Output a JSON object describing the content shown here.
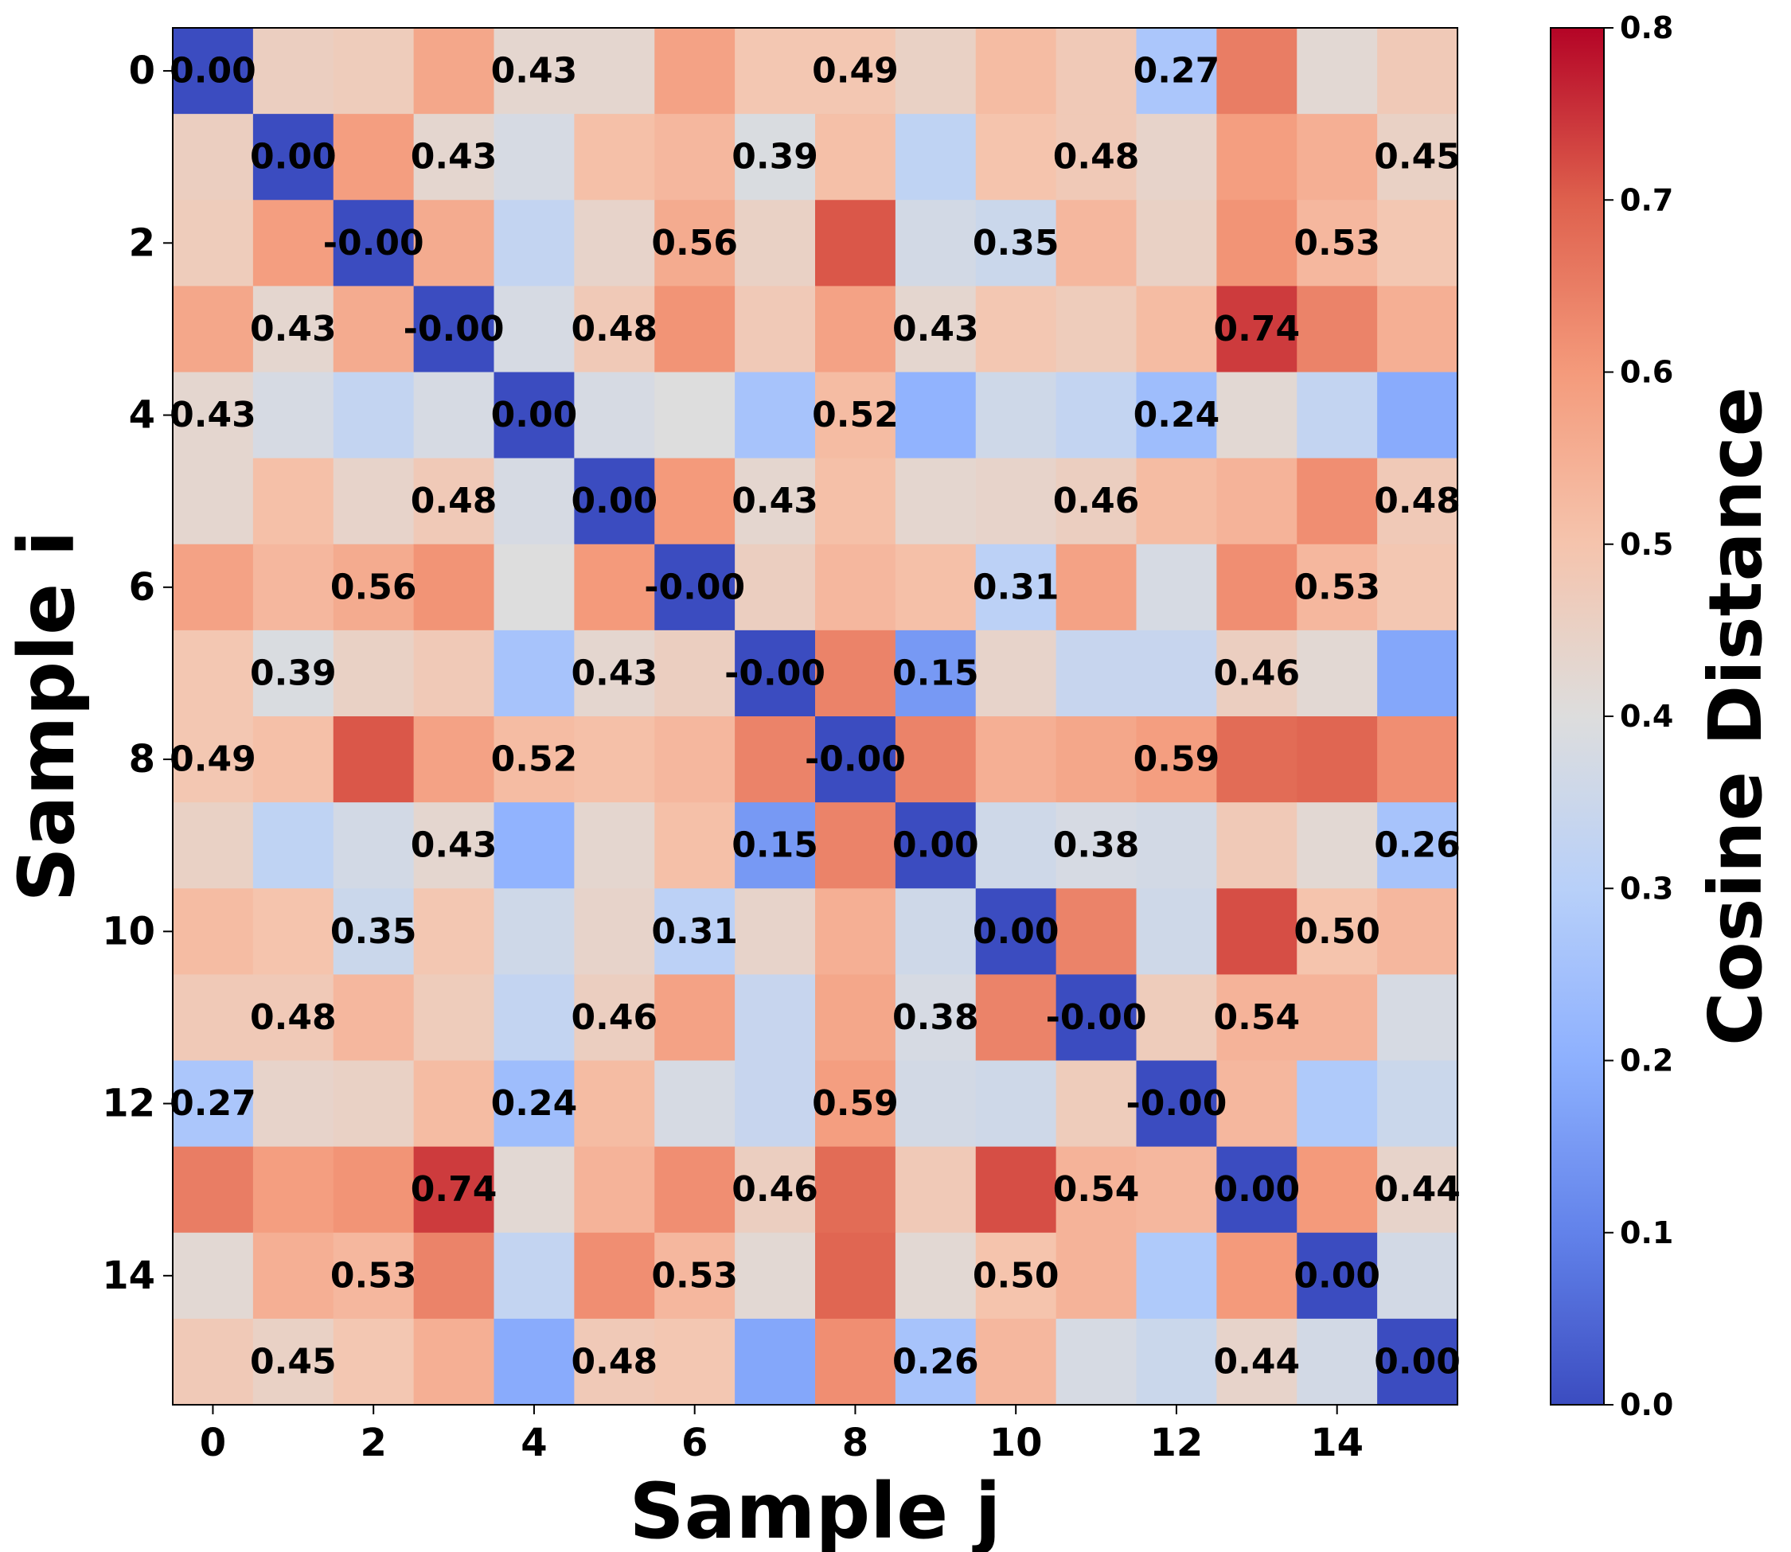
{
  "chart_data": {
    "type": "heatmap",
    "title": "",
    "xlabel": "Sample j",
    "ylabel": "Sample i",
    "x_ticks": [
      "0",
      "2",
      "4",
      "6",
      "8",
      "10",
      "12",
      "14"
    ],
    "y_ticks": [
      "0",
      "2",
      "4",
      "6",
      "8",
      "10",
      "12",
      "14"
    ],
    "colorbar": {
      "label": "Cosine Distance",
      "min": 0.0,
      "max": 0.8,
      "colormap": "coolwarm",
      "ticks": [
        "0.0",
        "0.1",
        "0.2",
        "0.3",
        "0.4",
        "0.5",
        "0.6",
        "0.7",
        "0.8"
      ]
    },
    "matrix": [
      [
        0.0,
        0.46,
        0.47,
        0.57,
        0.43,
        0.43,
        0.58,
        0.49,
        0.49,
        0.45,
        0.52,
        0.48,
        0.27,
        0.65,
        0.42,
        0.48
      ],
      [
        0.46,
        0.0,
        0.59,
        0.43,
        0.38,
        0.51,
        0.53,
        0.39,
        0.51,
        0.32,
        0.5,
        0.48,
        0.44,
        0.59,
        0.55,
        0.45
      ],
      [
        0.47,
        0.59,
        -0.0,
        0.56,
        0.33,
        0.44,
        0.56,
        0.45,
        0.71,
        0.37,
        0.35,
        0.53,
        0.45,
        0.61,
        0.53,
        0.49
      ],
      [
        0.57,
        0.43,
        0.56,
        -0.0,
        0.38,
        0.48,
        0.61,
        0.48,
        0.58,
        0.43,
        0.49,
        0.47,
        0.52,
        0.74,
        0.64,
        0.55
      ],
      [
        0.43,
        0.38,
        0.33,
        0.38,
        0.0,
        0.38,
        0.4,
        0.26,
        0.52,
        0.21,
        0.36,
        0.33,
        0.24,
        0.42,
        0.33,
        0.19
      ],
      [
        0.43,
        0.51,
        0.44,
        0.48,
        0.38,
        0.0,
        0.6,
        0.43,
        0.51,
        0.43,
        0.44,
        0.46,
        0.52,
        0.54,
        0.62,
        0.48
      ],
      [
        0.58,
        0.53,
        0.56,
        0.61,
        0.4,
        0.6,
        -0.0,
        0.46,
        0.53,
        0.51,
        0.31,
        0.58,
        0.38,
        0.62,
        0.53,
        0.49
      ],
      [
        0.49,
        0.39,
        0.45,
        0.48,
        0.26,
        0.43,
        0.46,
        -0.0,
        0.64,
        0.15,
        0.44,
        0.34,
        0.34,
        0.46,
        0.42,
        0.18
      ],
      [
        0.49,
        0.51,
        0.71,
        0.58,
        0.52,
        0.51,
        0.53,
        0.64,
        -0.0,
        0.64,
        0.55,
        0.57,
        0.59,
        0.68,
        0.69,
        0.62
      ],
      [
        0.45,
        0.32,
        0.37,
        0.43,
        0.21,
        0.43,
        0.51,
        0.15,
        0.64,
        0.0,
        0.36,
        0.38,
        0.37,
        0.48,
        0.42,
        0.26
      ],
      [
        0.52,
        0.5,
        0.35,
        0.49,
        0.36,
        0.44,
        0.31,
        0.44,
        0.55,
        0.36,
        0.0,
        0.64,
        0.36,
        0.72,
        0.5,
        0.53
      ],
      [
        0.48,
        0.48,
        0.53,
        0.47,
        0.33,
        0.46,
        0.58,
        0.34,
        0.57,
        0.38,
        0.64,
        -0.0,
        0.47,
        0.54,
        0.54,
        0.38
      ],
      [
        0.27,
        0.44,
        0.45,
        0.52,
        0.24,
        0.52,
        0.38,
        0.34,
        0.59,
        0.37,
        0.36,
        0.47,
        -0.0,
        0.53,
        0.28,
        0.35
      ],
      [
        0.65,
        0.59,
        0.61,
        0.74,
        0.42,
        0.54,
        0.62,
        0.46,
        0.68,
        0.48,
        0.72,
        0.54,
        0.53,
        0.0,
        0.6,
        0.44
      ],
      [
        0.42,
        0.55,
        0.53,
        0.64,
        0.33,
        0.62,
        0.53,
        0.42,
        0.69,
        0.42,
        0.5,
        0.54,
        0.28,
        0.6,
        0.0,
        0.37
      ],
      [
        0.48,
        0.45,
        0.49,
        0.55,
        0.19,
        0.48,
        0.49,
        0.18,
        0.62,
        0.26,
        0.53,
        0.38,
        0.35,
        0.44,
        0.37,
        0.0
      ]
    ],
    "labeled_cells": [
      [
        0,
        0
      ],
      [
        0,
        4
      ],
      [
        0,
        8
      ],
      [
        0,
        12
      ],
      [
        1,
        1
      ],
      [
        1,
        3
      ],
      [
        1,
        7
      ],
      [
        1,
        11
      ],
      [
        1,
        15
      ],
      [
        2,
        2
      ],
      [
        2,
        6
      ],
      [
        2,
        10
      ],
      [
        2,
        14
      ],
      [
        3,
        1
      ],
      [
        3,
        3
      ],
      [
        3,
        5
      ],
      [
        3,
        9
      ],
      [
        3,
        13
      ],
      [
        4,
        0
      ],
      [
        4,
        4
      ],
      [
        4,
        8
      ],
      [
        4,
        12
      ],
      [
        5,
        3
      ],
      [
        5,
        5
      ],
      [
        5,
        7
      ],
      [
        5,
        11
      ],
      [
        5,
        15
      ],
      [
        6,
        2
      ],
      [
        6,
        6
      ],
      [
        6,
        10
      ],
      [
        6,
        14
      ],
      [
        7,
        1
      ],
      [
        7,
        5
      ],
      [
        7,
        7
      ],
      [
        7,
        9
      ],
      [
        7,
        13
      ],
      [
        8,
        0
      ],
      [
        8,
        4
      ],
      [
        8,
        8
      ],
      [
        8,
        12
      ],
      [
        9,
        3
      ],
      [
        9,
        7
      ],
      [
        9,
        9
      ],
      [
        9,
        11
      ],
      [
        9,
        15
      ],
      [
        10,
        2
      ],
      [
        10,
        6
      ],
      [
        10,
        10
      ],
      [
        10,
        14
      ],
      [
        11,
        1
      ],
      [
        11,
        5
      ],
      [
        11,
        9
      ],
      [
        11,
        11
      ],
      [
        11,
        13
      ],
      [
        12,
        0
      ],
      [
        12,
        4
      ],
      [
        12,
        8
      ],
      [
        12,
        12
      ],
      [
        13,
        3
      ],
      [
        13,
        7
      ],
      [
        13,
        11
      ],
      [
        13,
        13
      ],
      [
        13,
        15
      ],
      [
        14,
        2
      ],
      [
        14,
        6
      ],
      [
        14,
        10
      ],
      [
        14,
        14
      ],
      [
        15,
        1
      ],
      [
        15,
        5
      ],
      [
        15,
        9
      ],
      [
        15,
        13
      ],
      [
        15,
        15
      ]
    ]
  }
}
